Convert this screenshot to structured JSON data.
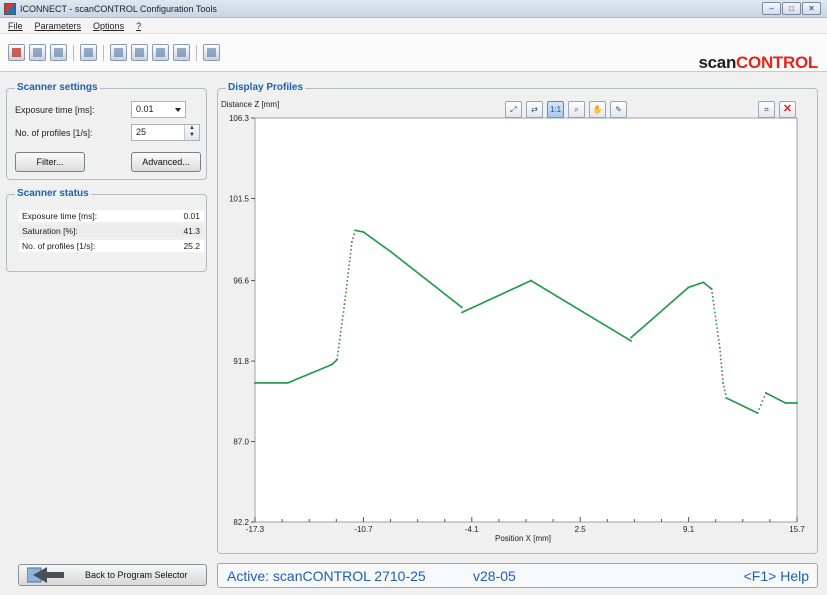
{
  "window": {
    "title": "ICONNECT - scanCONTROL Configuration Tools",
    "controls": [
      "minimize",
      "maximize",
      "close"
    ]
  },
  "menu": {
    "items": [
      "File",
      "Parameters",
      "Options",
      "?"
    ]
  },
  "toolbar": {
    "icons": [
      "open-profile-icon",
      "load-settings-icon",
      "save-icon",
      "grid-view-icon",
      "import-icon",
      "export-icon",
      "copy-settings-icon",
      "paste-settings-icon",
      "sdf-icon"
    ]
  },
  "brand": {
    "prefix": "scan",
    "suffix": "CONTROL",
    "accent_color": "#e0281e"
  },
  "scanner_settings": {
    "title": "Scanner settings",
    "exposure_label": "Exposure time [ms]:",
    "exposure_value": "0.01",
    "profiles_label": "No. of profiles [1/s]:",
    "profiles_value": "25",
    "filter_button": "Filter...",
    "advanced_button": "Advanced..."
  },
  "scanner_status": {
    "title": "Scanner status",
    "rows": [
      {
        "label": "Exposure time [ms]:",
        "value": "0.01"
      },
      {
        "label": "Saturation [%]:",
        "value": "41.3"
      },
      {
        "label": "No. of profiles [1/s]:",
        "value": "25.2"
      }
    ]
  },
  "display_profiles": {
    "title": "Display Profiles",
    "tools": [
      {
        "icon": "fit-view-icon",
        "active": false
      },
      {
        "icon": "autoscale-icon",
        "active": false
      },
      {
        "icon": "one-to-one-icon",
        "label": "1:1",
        "active": true
      },
      {
        "icon": "zoom-icon",
        "active": false
      },
      {
        "icon": "pan-hand-icon",
        "active": false
      },
      {
        "icon": "picker-icon",
        "active": false
      },
      {
        "icon": "measure-icon",
        "active": false
      },
      {
        "icon": "clear-icon",
        "active": false
      }
    ]
  },
  "chart_data": {
    "type": "scatter",
    "title": "",
    "xlabel": "Position X [mm]",
    "ylabel": "Distance Z [mm]",
    "xlim": [
      -17.3,
      15.7
    ],
    "ylim": [
      82.2,
      106.3
    ],
    "x_ticks": [
      "-17.3",
      "-10.7",
      "-4.1",
      "2.5",
      "9.1",
      "15.7"
    ],
    "y_ticks": [
      "106.3",
      "101.5",
      "96.6",
      "91.8",
      "87.0",
      "82.2"
    ],
    "grid": false,
    "series": [
      {
        "color": "#1f9a4a",
        "style": "dense-points",
        "x": [
          -17.3,
          -15.3,
          -12.6,
          -12.3,
          -11.85,
          -11.4,
          -11.2,
          -10.7,
          -9.0,
          -4.7
        ],
        "y": [
          90.5,
          90.5,
          91.6,
          91.9,
          95.2,
          98.9,
          99.6,
          99.5,
          98.3,
          95.0
        ]
      },
      {
        "color": "#1f9a4a",
        "style": "dense-points",
        "x": [
          -4.7,
          -0.5,
          5.6
        ],
        "y": [
          94.7,
          96.6,
          93.0
        ]
      },
      {
        "color": "#1f9a4a",
        "style": "dense-points",
        "x": [
          5.6,
          9.1,
          10.0,
          10.5,
          11.0,
          11.2,
          11.4
        ],
        "y": [
          93.2,
          96.2,
          96.5,
          96.1,
          92.6,
          90.5,
          89.6
        ]
      },
      {
        "color": "#1f9a4a",
        "style": "dense-points",
        "x": [
          11.4,
          13.3,
          13.8,
          15.0,
          15.7
        ],
        "y": [
          89.6,
          88.7,
          89.9,
          89.3,
          89.3
        ]
      }
    ]
  },
  "bottom": {
    "back_button": "Back to Program Selector",
    "active_text": "Active: scanCONTROL 2710-25",
    "version": "v28-05",
    "help": "<F1> Help"
  }
}
